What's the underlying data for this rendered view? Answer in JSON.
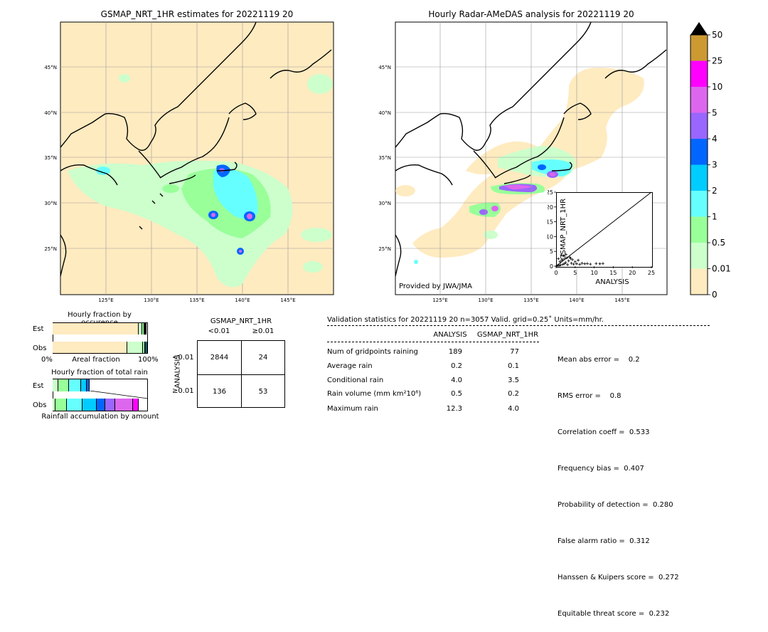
{
  "left_map": {
    "title": "GSMAP_NRT_1HR estimates for 20221119 20",
    "lat_labels": [
      "45°N",
      "40°N",
      "35°N",
      "30°N",
      "25°N"
    ],
    "lon_labels": [
      "125°E",
      "130°E",
      "135°E",
      "140°E",
      "145°E"
    ]
  },
  "right_map": {
    "title": "Hourly Radar-AMeDAS analysis for 20221119 20",
    "lat_labels": [
      "45°N",
      "40°N",
      "35°N",
      "30°N",
      "25°N"
    ],
    "lon_labels": [
      "125°E",
      "130°E",
      "135°E",
      "140°E",
      "145°E"
    ],
    "credit": "Provided by JWA/JMA"
  },
  "colorbar": {
    "labels": [
      "50",
      "25",
      "10",
      "5",
      "4",
      "3",
      "2",
      "1",
      "0.5",
      "0.01",
      "0"
    ],
    "colors": [
      "#cc9933",
      "#ff00ff",
      "#dd66ee",
      "#9966ff",
      "#0066ff",
      "#00ccff",
      "#66ffff",
      "#99ff99",
      "#ccffcc",
      "#ffebc0"
    ]
  },
  "chart_data": [
    {
      "type": "scatter",
      "xlabel": "ANALYSIS",
      "ylabel": "GSMAP_NRT_1HR",
      "xlim": [
        0,
        25
      ],
      "ylim": [
        0,
        25
      ],
      "xticks": [
        "0",
        "5",
        "10",
        "15",
        "20",
        "25"
      ],
      "yticks": [
        "0",
        "5",
        "10",
        "15",
        "20",
        "25"
      ],
      "diagonal": true,
      "points": [
        [
          0.2,
          0.1
        ],
        [
          0.5,
          0.3
        ],
        [
          0.8,
          0.2
        ],
        [
          1.0,
          1.5
        ],
        [
          1.2,
          0.4
        ],
        [
          1.5,
          2.0
        ],
        [
          1.8,
          0.6
        ],
        [
          2.0,
          3.5
        ],
        [
          2.2,
          0.9
        ],
        [
          2.5,
          1.2
        ],
        [
          2.8,
          2.8
        ],
        [
          3.0,
          0.5
        ],
        [
          3.3,
          1.8
        ],
        [
          3.6,
          3.0
        ],
        [
          4.0,
          1.0
        ],
        [
          4.3,
          2.2
        ],
        [
          4.6,
          0.7
        ],
        [
          5.0,
          1.5
        ],
        [
          5.4,
          0.8
        ],
        [
          5.8,
          2.0
        ],
        [
          6.2,
          0.6
        ],
        [
          6.8,
          1.0
        ],
        [
          7.5,
          0.8
        ],
        [
          8.2,
          0.9
        ],
        [
          9.0,
          0.7
        ],
        [
          10.5,
          0.9
        ],
        [
          11.5,
          0.8
        ],
        [
          12.3,
          0.9
        ],
        [
          0.6,
          2.5
        ],
        [
          1.4,
          3.8
        ],
        [
          2.6,
          4.0
        ],
        [
          3.8,
          2.6
        ]
      ]
    },
    {
      "type": "bar",
      "title": "Hourly fraction by occurence",
      "categories": [
        "Est",
        "Obs"
      ],
      "xlabel": "Areal fraction",
      "x_left": "0%",
      "x_right": "100%",
      "series": [
        {
          "color": "#ffebc0",
          "values": [
            0.9,
            0.78
          ]
        },
        {
          "color": "#ccffcc",
          "values": [
            0.04,
            0.17
          ]
        },
        {
          "color": "#99ff99",
          "values": [
            0.02,
            0.02
          ]
        },
        {
          "color": "#66ffff",
          "values": [
            0.01,
            0.01
          ]
        },
        {
          "color": "#00ccff",
          "values": [
            0.005,
            0.01
          ]
        },
        {
          "color": "#0066ff",
          "values": [
            0.005,
            0.01
          ]
        }
      ]
    },
    {
      "type": "bar",
      "title": "Hourly fraction of total rain",
      "categories": [
        "Est",
        "Obs"
      ],
      "xlabel": "Rainfall accumulation by amount",
      "series": [
        {
          "color": "#ccffcc",
          "values": [
            0.06,
            0.03
          ]
        },
        {
          "color": "#99ff99",
          "values": [
            0.11,
            0.12
          ]
        },
        {
          "color": "#66ffff",
          "values": [
            0.13,
            0.16
          ]
        },
        {
          "color": "#00ccff",
          "values": [
            0.06,
            0.15
          ]
        },
        {
          "color": "#0066ff",
          "values": [
            0.03,
            0.09
          ]
        },
        {
          "color": "#9966ff",
          "values": [
            0.0,
            0.11
          ]
        },
        {
          "color": "#dd66ee",
          "values": [
            0.0,
            0.18
          ]
        },
        {
          "color": "#ff00ff",
          "values": [
            0.0,
            0.06
          ]
        }
      ]
    },
    {
      "type": "table",
      "title": "GSMAP_NRT_1HR",
      "col_headers": [
        "<0.01",
        "≥0.01"
      ],
      "row_axis_label": "ANALYSIS",
      "row_headers": [
        "<0.01",
        "≥0.01"
      ],
      "cells": [
        [
          "2844",
          "24"
        ],
        [
          "136",
          "53"
        ]
      ]
    },
    {
      "type": "table",
      "title": "Validation statistics for 20221119 20  n=3057 Valid. grid=0.25˚ Units=mm/hr.",
      "columns": [
        "ANALYSIS",
        "GSMAP_NRT_1HR"
      ],
      "rows": [
        {
          "label": "Num of gridpoints raining",
          "analysis": "189",
          "gsmap": "77"
        },
        {
          "label": "Average rain",
          "analysis": "0.2",
          "gsmap": "0.1"
        },
        {
          "label": "Conditional rain",
          "analysis": "4.0",
          "gsmap": "3.5"
        },
        {
          "label": "Rain volume (mm km²10⁶)",
          "analysis": "0.5",
          "gsmap": "0.2"
        },
        {
          "label": "Maximum rain",
          "analysis": "12.3",
          "gsmap": "4.0"
        }
      ],
      "scores": [
        "Mean abs error =    0.2",
        "RMS error =    0.8",
        "Correlation coeff =  0.533",
        "Frequency bias =  0.407",
        "Probability of detection =  0.280",
        "False alarm ratio =  0.312",
        "Hanssen & Kuipers score =  0.272",
        "Equitable threat score =  0.232"
      ]
    }
  ]
}
